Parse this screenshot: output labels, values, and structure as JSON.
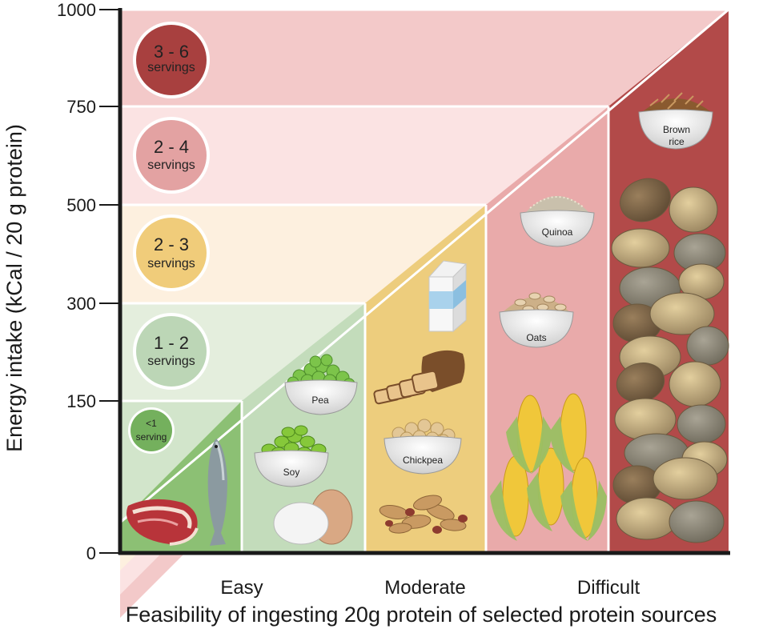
{
  "chart_data": {
    "type": "diagram",
    "title": "",
    "ylabel": "Energy intake (kCal / 20 g protein)",
    "xlabel": "Feasibility of ingesting 20g protein of selected protein sources",
    "y_ticks": [
      "1000",
      "750",
      "500",
      "300",
      "150",
      "0"
    ],
    "x_ticks": [
      "Easy",
      "Moderate",
      "Difficult"
    ],
    "bands": [
      {
        "range_kcal": [
          750,
          1000
        ],
        "label_num": "3 - 6",
        "label_txt": "servings",
        "fill": "#f3c9c9",
        "badge": "#a8403f"
      },
      {
        "range_kcal": [
          500,
          750
        ],
        "label_num": "2 - 4",
        "label_txt": "servings",
        "fill": "#fbe3e3",
        "badge": "#e3a2a2"
      },
      {
        "range_kcal": [
          300,
          500
        ],
        "label_num": "2 - 3",
        "label_txt": "servings",
        "fill": "#fdf0df",
        "badge": "#f0cc7a"
      },
      {
        "range_kcal": [
          150,
          300
        ],
        "label_num": "1 - 2",
        "label_txt": "servings",
        "fill": "#e4eedd",
        "badge": "#bcd6b6"
      },
      {
        "range_kcal": [
          0,
          150
        ],
        "label_num": "<1",
        "label_txt": "serving",
        "fill": "#d2e5cb",
        "badge": "#74b05d"
      }
    ],
    "columns": [
      {
        "name": "meat-fish",
        "fill": "#8cc074",
        "foods": [
          "meat",
          "fish"
        ]
      },
      {
        "name": "legumes-egg",
        "fill": "#c3dcbb",
        "foods": [
          "Pea",
          "Soy",
          "egg"
        ]
      },
      {
        "name": "moderate",
        "fill": "#edcd7d",
        "foods": [
          "milk",
          "bread",
          "Chickpea",
          "peanuts"
        ]
      },
      {
        "name": "grains",
        "fill": "#e9aaaa",
        "foods": [
          "Quinoa",
          "Oats",
          "corn"
        ]
      },
      {
        "name": "difficult",
        "fill": "#b24a49",
        "foods": [
          "Brown rice",
          "potatoes"
        ]
      }
    ],
    "food_labels": {
      "pea": "Pea",
      "soy": "Soy",
      "chickpea": "Chickpea",
      "quinoa": "Quinoa",
      "oats": "Oats",
      "brown_rice_1": "Brown",
      "brown_rice_2": "rice"
    }
  },
  "colors": {
    "axis": "#1a1a1a",
    "divider": "#ffffff"
  }
}
